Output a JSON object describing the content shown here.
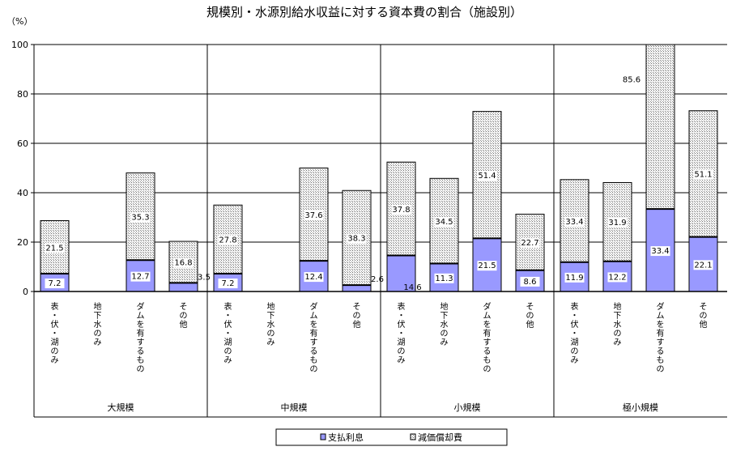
{
  "chart_data": {
    "type": "bar",
    "stacked": true,
    "title": "規模別・水源別給水収益に対する資本費の割合（施設別）",
    "yunit": "（%）",
    "ylim": [
      0,
      100
    ],
    "yticks": [
      0,
      20,
      40,
      60,
      80,
      100
    ],
    "grid": true,
    "legend_position": "bottom",
    "groups": [
      "大規模",
      "中規模",
      "小規模",
      "極小規模"
    ],
    "categories": [
      "表・伏・湖のみ",
      "地下水のみ",
      "ダムを有するもの",
      "その他"
    ],
    "series": [
      {
        "name": "支払利息",
        "color": "#9999ff",
        "values": [
          [
            7.2,
            0,
            12.7,
            3.5
          ],
          [
            7.2,
            0,
            12.4,
            2.6
          ],
          [
            14.6,
            11.3,
            21.5,
            8.6
          ],
          [
            11.9,
            12.2,
            33.4,
            22.1
          ]
        ]
      },
      {
        "name": "減価償却費",
        "color": "#d8d8d8",
        "values": [
          [
            21.5,
            0,
            35.3,
            16.8
          ],
          [
            27.8,
            0,
            37.6,
            38.3
          ],
          [
            37.8,
            34.5,
            51.4,
            22.7
          ],
          [
            33.4,
            31.9,
            85.6,
            51.1
          ]
        ]
      }
    ],
    "labels": {
      "interest": [
        [
          "7.2",
          "",
          "12.7",
          "3.5"
        ],
        [
          "7.2",
          "",
          "12.4",
          "2.6"
        ],
        [
          "14.6",
          "11.3",
          "21.5",
          "8.6"
        ],
        [
          "11.9",
          "12.2",
          "33.4",
          "22.1"
        ]
      ],
      "depreciation": [
        [
          "21.5",
          "",
          "35.3",
          "16.8"
        ],
        [
          "27.8",
          "",
          "37.6",
          "38.3"
        ],
        [
          "37.8",
          "34.5",
          "51.4",
          "22.7"
        ],
        [
          "33.4",
          "31.9",
          "85.6",
          "51.1"
        ]
      ]
    }
  }
}
